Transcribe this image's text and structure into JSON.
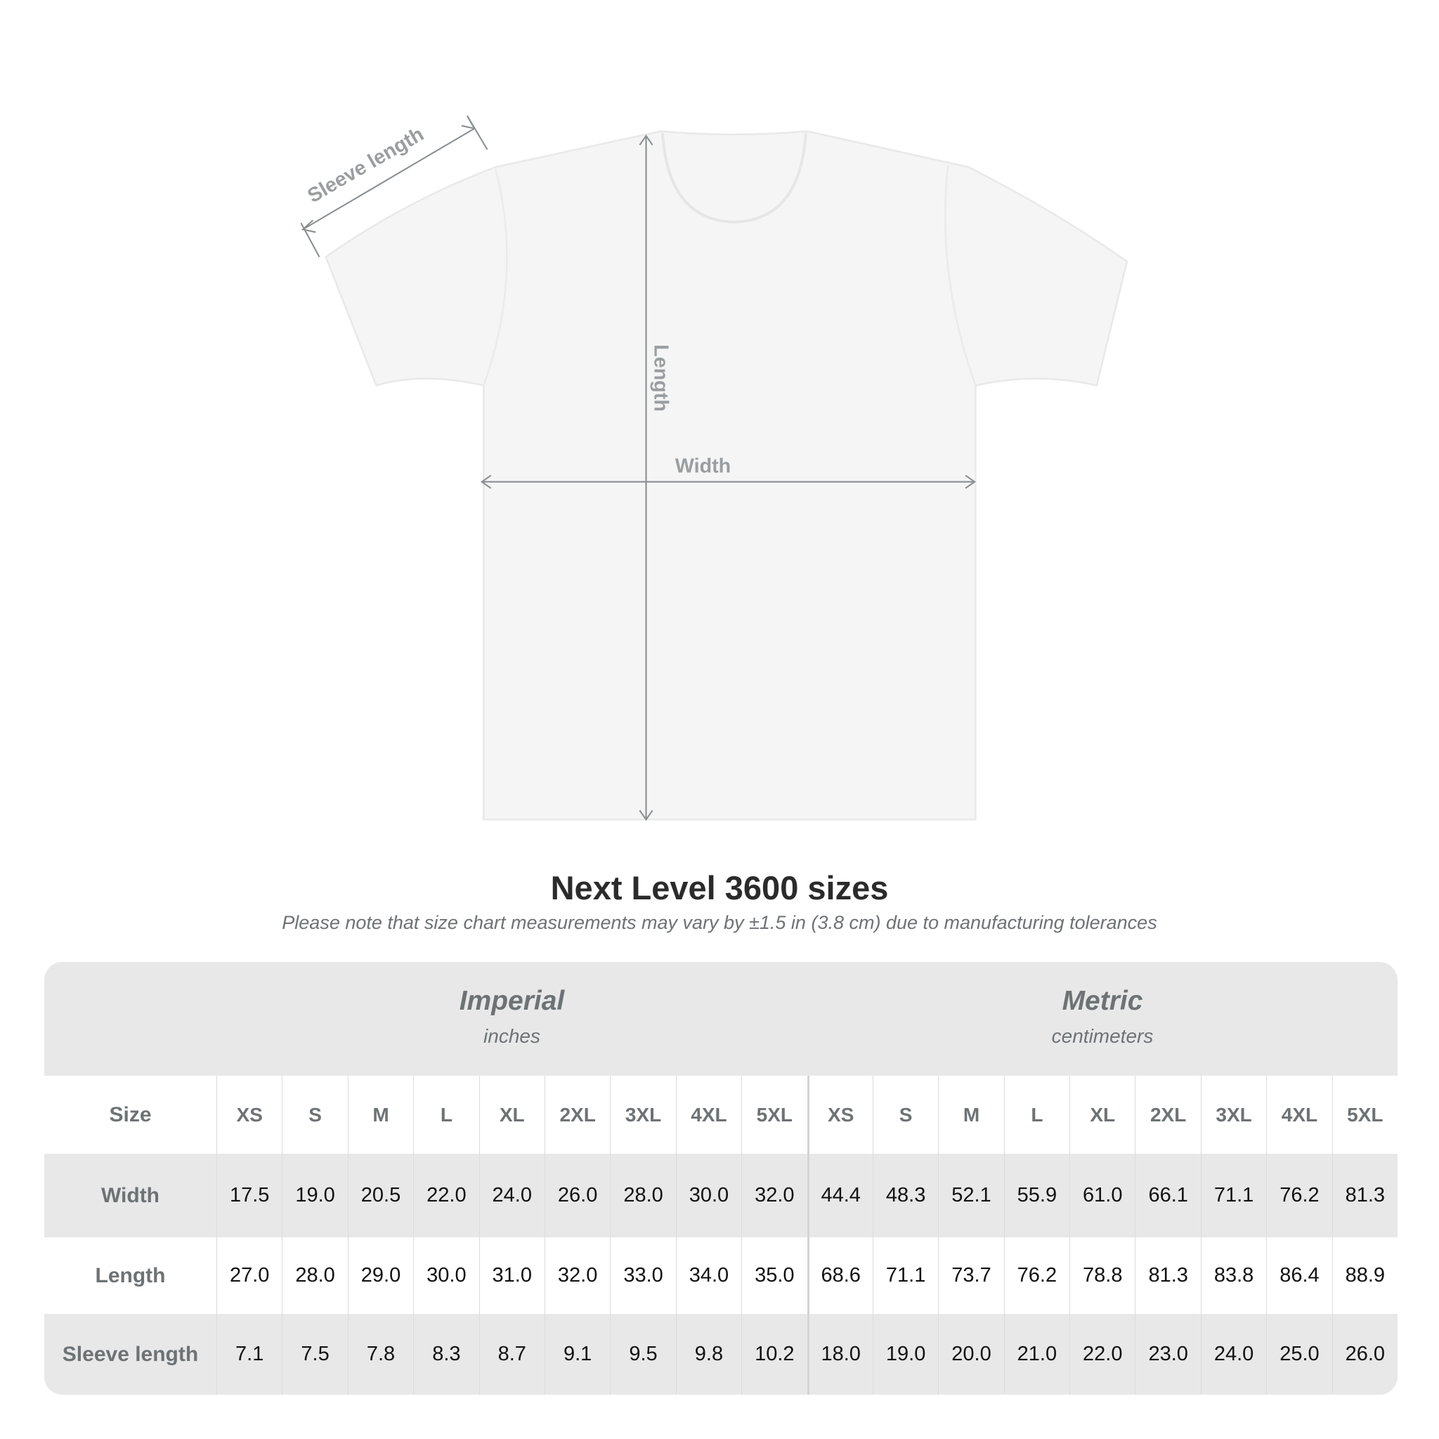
{
  "diagram": {
    "sleeve_label": "Sleeve length",
    "length_label": "Length",
    "width_label": "Width"
  },
  "title": "Next Level 3600 sizes",
  "subtitle": "Please note that size chart measurements may vary by ±1.5 in (3.8 cm) due to manufacturing tolerances",
  "table": {
    "imperial": {
      "name": "Imperial",
      "unit": "inches"
    },
    "metric": {
      "name": "Metric",
      "unit": "centimeters"
    },
    "size_label": "Size",
    "sizes": [
      "XS",
      "S",
      "M",
      "L",
      "XL",
      "2XL",
      "3XL",
      "4XL",
      "5XL"
    ],
    "rows": [
      {
        "label": "Width",
        "imperial": [
          "17.5",
          "19.0",
          "20.5",
          "22.0",
          "24.0",
          "26.0",
          "28.0",
          "30.0",
          "32.0"
        ],
        "metric": [
          "44.4",
          "48.3",
          "52.1",
          "55.9",
          "61.0",
          "66.1",
          "71.1",
          "76.2",
          "81.3"
        ]
      },
      {
        "label": "Length",
        "imperial": [
          "27.0",
          "28.0",
          "29.0",
          "30.0",
          "31.0",
          "32.0",
          "33.0",
          "34.0",
          "35.0"
        ],
        "metric": [
          "68.6",
          "71.1",
          "73.7",
          "76.2",
          "78.8",
          "81.3",
          "83.8",
          "86.4",
          "88.9"
        ]
      },
      {
        "label": "Sleeve length",
        "imperial": [
          "7.1",
          "7.5",
          "7.8",
          "8.3",
          "8.7",
          "9.1",
          "9.5",
          "9.8",
          "10.2"
        ],
        "metric": [
          "18.0",
          "19.0",
          "20.0",
          "21.0",
          "22.0",
          "23.0",
          "24.0",
          "25.0",
          "26.0"
        ]
      }
    ]
  },
  "colors": {
    "label_gray": "#6d7275",
    "stripe": "#e8e8e8",
    "arrow": "#8a8f92"
  }
}
